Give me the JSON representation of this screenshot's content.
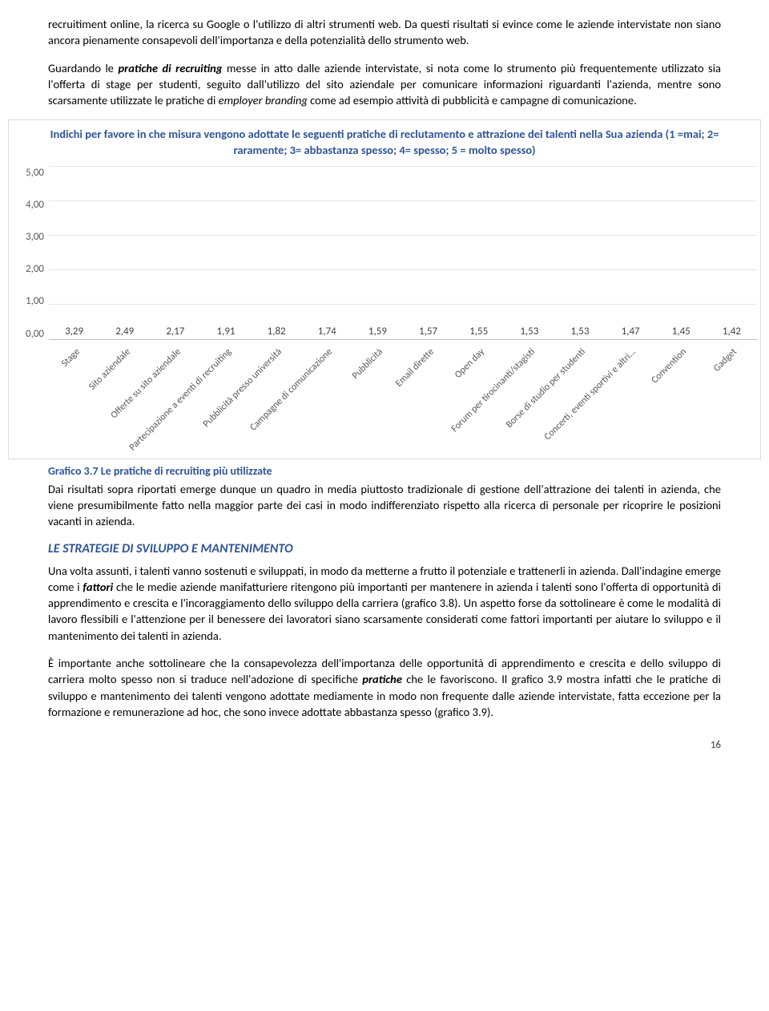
{
  "para1_a": "recruitiment online, la ricerca su Google o l'utilizzo di altri strumenti web. Da questi risultati si evince come le aziende intervistate non siano ancora pienamente consapevoli dell'importanza e della potenzialità dello strumento web.",
  "para2_a": "Guardando le ",
  "para2_b": "pratiche di recruiting",
  "para2_c": " messe in atto dalle aziende intervistate, si nota come lo strumento più frequentemente utilizzato sia l'offerta di stage per studenti, seguito dall'utilizzo del sito aziendale per comunicare informazioni riguardanti l'azienda, mentre sono scarsamente utilizzate le pratiche di ",
  "para2_d": "employer branding",
  "para2_e": " come ad esempio attività di pubblicità e campagne di comunicazione.",
  "chart": {
    "title": "Indichi per favore in che misura vengono adottate le seguenti pratiche di reclutamento e attrazione dei talenti nella Sua azienda (1 =mai; 2= raramente; 3= abbastanza spesso; 4= spesso; 5 = molto spesso)",
    "ylim_max": 5,
    "yticks": [
      "5,00",
      "4,00",
      "3,00",
      "2,00",
      "1,00",
      "0,00"
    ],
    "bar_color": "#4472c4",
    "grid_color": "#e6e6e6",
    "categories": [
      "Stage",
      "Sito aziendale",
      "Offerte su sito aziendale",
      "Partecipazione a eventi di recruiting",
      "Pubblicità presso università",
      "Campagne di comunicazione",
      "Pubblicità",
      "Email dirette",
      "Open day",
      "Forum per tirocinanti/stagisti",
      "Borse di studio per studenti",
      "Concerti, eventi sportivi e altri...",
      "Convention",
      "Gadget"
    ],
    "values": [
      3.29,
      2.49,
      2.17,
      1.91,
      1.82,
      1.74,
      1.59,
      1.57,
      1.55,
      1.53,
      1.53,
      1.47,
      1.45,
      1.42
    ],
    "value_labels": [
      "3,29",
      "2,49",
      "2,17",
      "1,91",
      "1,82",
      "1,74",
      "1,59",
      "1,57",
      "1,55",
      "1,53",
      "1,53",
      "1,47",
      "1,45",
      "1,42"
    ]
  },
  "caption": "Grafico 3.7 Le pratiche di recruiting più utilizzate",
  "para3": "Dai risultati sopra riportati emerge dunque un quadro in media piuttosto tradizionale di gestione dell'attrazione dei talenti in azienda, che viene presumibilmente fatto nella maggior parte dei casi in modo indifferenziato rispetto alla ricerca di personale per ricoprire le posizioni vacanti in azienda.",
  "section_head": "LE STRATEGIE DI SVILUPPO E MANTENIMENTO",
  "para4_a": "Una volta assunti, i talenti vanno sostenuti e sviluppati, in modo da metterne a frutto il potenziale e trattenerli in azienda. Dall'indagine emerge come i ",
  "para4_b": "fattori",
  "para4_c": " che le medie aziende manifatturiere ritengono più importanti per mantenere in azienda i talenti sono l'offerta di opportunità di apprendimento e crescita e l'incoraggiamento dello sviluppo della carriera (grafico 3.8). Un aspetto forse da sottolineare è come le modalità di lavoro flessibili e l'attenzione per il benessere dei lavoratori siano scarsamente considerati come fattori importanti per aiutare lo sviluppo e il mantenimento dei talenti in azienda.",
  "para5_a": "È importante anche sottolineare che la consapevolezza dell'importanza delle opportunità di apprendimento e crescita e dello sviluppo di carriera molto spesso non si traduce nell'adozione di specifiche ",
  "para5_b": "pratiche",
  "para5_c": " che le favoriscono. Il grafico 3.9 mostra infatti che le pratiche di sviluppo e mantenimento dei talenti vengono adottate mediamente in modo non frequente dalle aziende intervistate, fatta eccezione per la formazione e remunerazione ad hoc, che sono invece adottate abbastanza spesso (grafico 3.9).",
  "page_number": "16"
}
